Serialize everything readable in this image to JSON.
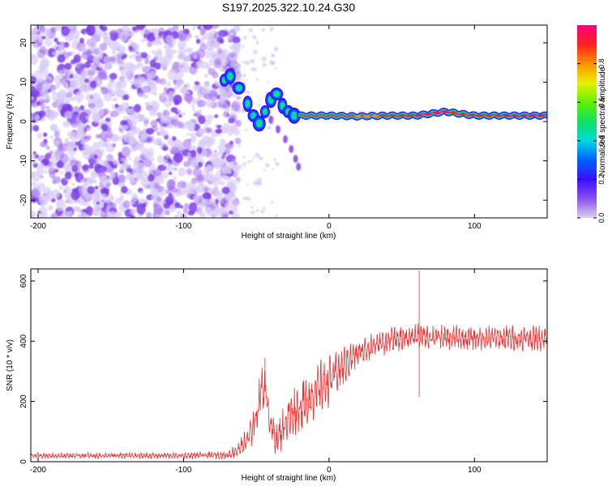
{
  "title": "S197.2025.322.10.24.G30",
  "colors": {
    "snr_line": "#e83030",
    "axis": "#000000",
    "background": "#ffffff"
  },
  "chart_data": [
    {
      "type": "heatmap",
      "title": "S197.2025.322.10.24.G30",
      "xlabel": "Height of straight line (km)",
      "ylabel": "Frequency (Hz)",
      "xlim": [
        -205,
        150
      ],
      "ylim": [
        -24.5,
        24.5
      ],
      "xticks": [
        -200,
        -100,
        0,
        100
      ],
      "yticks": [
        -20,
        -10,
        0,
        10,
        20
      ],
      "colorbar": {
        "label": "Normalized spectral amplitude",
        "range": [
          0,
          1
        ],
        "ticks": [
          "0.0",
          "0.2",
          "0.4",
          "0.6",
          "0.8"
        ],
        "tick_values": [
          0,
          0.2,
          0.4,
          0.6,
          0.8
        ],
        "colormap": [
          "#d8d0f0",
          "#8a50f0",
          "#3a10ff",
          "#0060ff",
          "#00d8e0",
          "#10e060",
          "#60f000",
          "#e8f000",
          "#ff9000",
          "#ff2020",
          "#ff0080"
        ]
      },
      "features": {
        "noise_region_km": [
          -205,
          -62
        ],
        "noise_color": "#7b3fe8",
        "noise_freq_range_hz": [
          -24.5,
          24.5
        ],
        "transition_track": [
          {
            "x": -72,
            "f": 10.5,
            "amp": 0.35
          },
          {
            "x": -68,
            "f": 11.5,
            "amp": 0.4
          },
          {
            "x": -62,
            "f": 8.5,
            "amp": 0.35
          },
          {
            "x": -56,
            "f": 4.5,
            "amp": 0.3
          },
          {
            "x": -52,
            "f": 1.5,
            "amp": 0.3
          },
          {
            "x": -48,
            "f": -0.5,
            "amp": 0.3
          },
          {
            "x": -44,
            "f": 2.5,
            "amp": 0.3
          },
          {
            "x": -40,
            "f": 5.5,
            "amp": 0.3
          },
          {
            "x": -36,
            "f": 7.0,
            "amp": 0.35
          },
          {
            "x": -32,
            "f": 4.0,
            "amp": 0.35
          },
          {
            "x": -28,
            "f": 2.5,
            "amp": 0.3
          },
          {
            "x": -24,
            "f": 1.5,
            "amp": 0.3
          }
        ],
        "tail_track": [
          {
            "x": -40,
            "f": 0.5
          },
          {
            "x": -35,
            "f": -2.0
          },
          {
            "x": -30,
            "f": -4.5
          },
          {
            "x": -26,
            "f": -7.0
          },
          {
            "x": -23,
            "f": -9.5
          },
          {
            "x": -21,
            "f": -11.5
          }
        ],
        "steady_track": [
          {
            "x": -20,
            "f": 1.5,
            "amp": 0.45
          },
          {
            "x": 0,
            "f": 1.5,
            "amp": 0.55
          },
          {
            "x": 20,
            "f": 1.3,
            "amp": 0.75
          },
          {
            "x": 40,
            "f": 1.5,
            "amp": 0.9
          },
          {
            "x": 60,
            "f": 1.5,
            "amp": 0.95
          },
          {
            "x": 80,
            "f": 2.5,
            "amp": 0.95
          },
          {
            "x": 100,
            "f": 1.5,
            "amp": 0.9
          },
          {
            "x": 120,
            "f": 1.5,
            "amp": 0.95
          },
          {
            "x": 150,
            "f": 1.5,
            "amp": 0.95
          }
        ]
      }
    },
    {
      "type": "line",
      "xlabel": "Height of straight line (km)",
      "ylabel": "SNR (10 * v/v)",
      "xlim": [
        -205,
        150
      ],
      "ylim": [
        0,
        640
      ],
      "xticks": [
        -200,
        -100,
        0,
        100
      ],
      "yticks": [
        0,
        200,
        400,
        600
      ],
      "series": [
        {
          "name": "SNR",
          "x": [
            -205,
            -150,
            -100,
            -70,
            -62,
            -55,
            -50,
            -46,
            -43,
            -40,
            -36,
            -30,
            -25,
            -20,
            -15,
            -10,
            -5,
            0,
            10,
            20,
            30,
            40,
            50,
            60,
            70,
            80,
            90,
            100,
            110,
            120,
            130,
            140,
            150
          ],
          "y": [
            20,
            20,
            20,
            22,
            40,
            80,
            150,
            260,
            220,
            120,
            70,
            130,
            160,
            180,
            200,
            230,
            250,
            270,
            320,
            360,
            385,
            400,
            410,
            415,
            415,
            410,
            410,
            410,
            410,
            410,
            410,
            410,
            410
          ],
          "noise_amplitude": [
            10,
            10,
            12,
            14,
            30,
            50,
            70,
            80,
            80,
            60,
            60,
            80,
            90,
            90,
            95,
            95,
            95,
            90,
            70,
            50,
            45,
            45,
            45,
            45,
            45,
            45,
            45,
            45,
            45,
            45,
            45,
            45,
            45
          ],
          "spikes": [
            {
              "x": 62,
              "y": 635
            },
            {
              "x": 62,
              "y": 215
            },
            {
              "x": -44,
              "y": 345
            }
          ]
        }
      ]
    }
  ]
}
